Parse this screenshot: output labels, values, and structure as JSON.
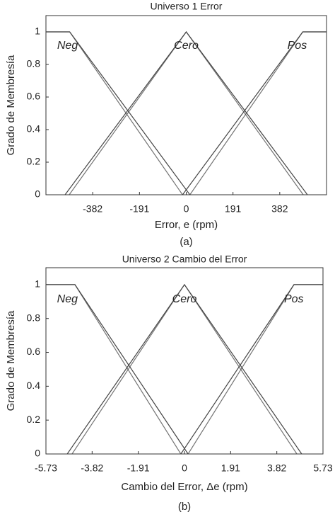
{
  "chart_data": [
    {
      "type": "line",
      "title": "Universo 1 Error",
      "xlabel": "Error, e (rpm)",
      "ylabel": "Grado de Membresía",
      "caption": "(a)",
      "xlim": [
        -573,
        573
      ],
      "xticks": [
        -382,
        -191,
        0,
        191,
        382
      ],
      "ylim": [
        0,
        1.1
      ],
      "yticks": [
        0,
        0.2,
        0.4,
        0.6,
        0.8,
        1
      ],
      "grid": false,
      "series": [
        {
          "name": "Neg",
          "color": "#444444",
          "x": [
            -573,
            -476,
            15
          ],
          "values": [
            1,
            1,
            0
          ],
          "lower_x": [
            -573,
            -476,
            -15
          ],
          "lower_values": [
            1,
            1,
            0
          ]
        },
        {
          "name": "Cero",
          "color": "#444444",
          "x": [
            -495,
            0,
            495
          ],
          "values": [
            0,
            1,
            0
          ],
          "lower_x": [
            -478,
            0,
            478
          ],
          "lower_values": [
            0,
            1,
            0
          ]
        },
        {
          "name": "Pos",
          "color": "#444444",
          "x": [
            -15,
            476,
            573
          ],
          "values": [
            0,
            1,
            1
          ],
          "lower_x": [
            15,
            476,
            573
          ],
          "lower_values": [
            0,
            1,
            1
          ]
        }
      ]
    },
    {
      "type": "line",
      "title": "Universo 2 Cambio del Error",
      "xlabel": "Cambio del Error, Δe (rpm)",
      "ylabel": "Grado de Membresía",
      "caption": "(b)",
      "xlim": [
        -5.73,
        5.73
      ],
      "xticks": [
        -5.73,
        -3.82,
        -1.91,
        0,
        1.91,
        3.82,
        5.73
      ],
      "ylim": [
        0,
        1.1
      ],
      "yticks": [
        0,
        0.2,
        0.4,
        0.6,
        0.8,
        1
      ],
      "grid": false,
      "series": [
        {
          "name": "Neg",
          "color": "#444444",
          "x": [
            -5.73,
            -4.53,
            0.15
          ],
          "values": [
            1,
            1,
            0
          ],
          "lower_x": [
            -5.73,
            -4.53,
            -0.15
          ],
          "lower_values": [
            1,
            1,
            0
          ]
        },
        {
          "name": "Cero",
          "color": "#444444",
          "x": [
            -4.85,
            0,
            4.85
          ],
          "values": [
            0,
            1,
            0
          ],
          "lower_x": [
            -4.65,
            0,
            4.65
          ],
          "lower_values": [
            0,
            1,
            0
          ]
        },
        {
          "name": "Pos",
          "color": "#444444",
          "x": [
            -0.15,
            4.53,
            5.73
          ],
          "values": [
            0,
            1,
            1
          ],
          "lower_x": [
            0.15,
            4.53,
            5.73
          ],
          "lower_values": [
            0,
            1,
            1
          ]
        }
      ]
    }
  ]
}
